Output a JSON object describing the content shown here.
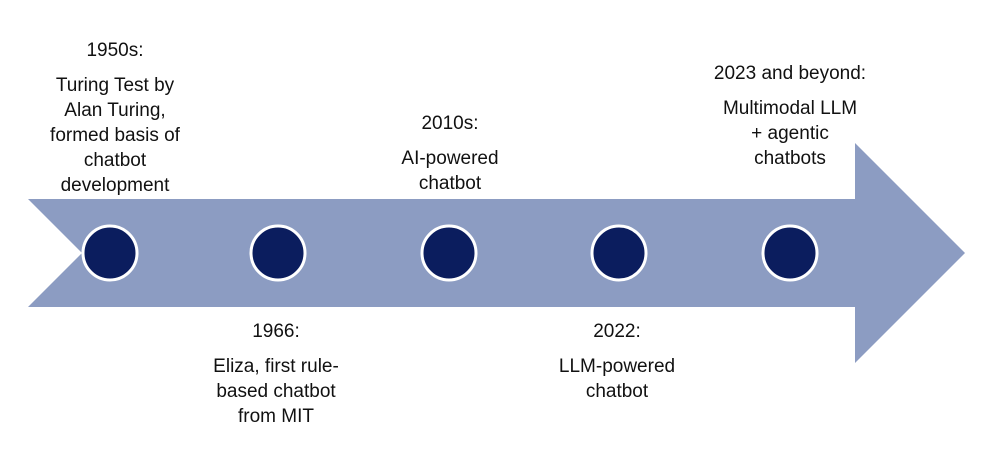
{
  "colors": {
    "arrow": "#8C9CC2",
    "node_fill": "#0B1D5E",
    "node_stroke": "#FFFFFF",
    "text": "#111111"
  },
  "events": [
    {
      "date": "1950s:",
      "description": "Turing Test by Alan Turing, formed basis of chatbot development",
      "position": "above"
    },
    {
      "date": "1966:",
      "description": "Eliza, first rule-based chatbot from MIT",
      "position": "below"
    },
    {
      "date": "2010s:",
      "description": "AI-powered chatbot",
      "position": "above"
    },
    {
      "date": "2022:",
      "description": "LLM-powered chatbot",
      "position": "below"
    },
    {
      "date": "2023 and beyond:",
      "description": "Multimodal LLM + agentic chatbots",
      "position": "above"
    }
  ]
}
